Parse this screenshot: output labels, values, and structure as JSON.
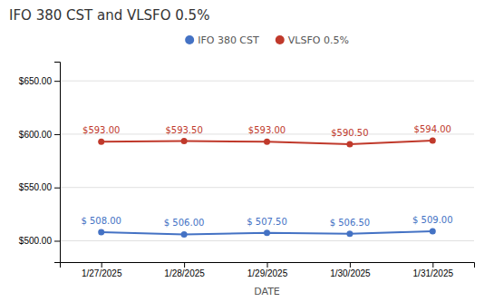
{
  "chart_data": {
    "type": "line",
    "title": "IFO 380 CST and VLSFO 0.5%",
    "x_label": "DATE",
    "categories": [
      "1/27/2025",
      "1/28/2025",
      "1/29/2025",
      "1/30/2025",
      "1/31/2025"
    ],
    "series": [
      {
        "name": "IFO 380 CST",
        "color": "#4472C4",
        "marker": "circle",
        "values": [
          508.0,
          506.0,
          507.5,
          506.5,
          509.0
        ],
        "value_labels": [
          "$ 508.00",
          "$ 506.00",
          "$ 507.50",
          "$ 506.50",
          "$ 509.00"
        ]
      },
      {
        "name": "VLSFO 0.5%",
        "color": "#C0392B",
        "marker": "circle",
        "values": [
          593.0,
          593.5,
          593.0,
          590.5,
          594.0
        ],
        "value_labels": [
          "$593.00",
          "$593.50",
          "$593.00",
          "$590.50",
          "$594.00"
        ]
      }
    ],
    "ylim": [
      480,
      668
    ],
    "yticks": [
      {
        "value": 500,
        "label": "$500.00"
      },
      {
        "value": 550,
        "label": "$550.00"
      },
      {
        "value": 600,
        "label": "$600.00"
      },
      {
        "value": 650,
        "label": "$650.00"
      }
    ],
    "grid": true,
    "legend": "top",
    "data_labels": true
  }
}
